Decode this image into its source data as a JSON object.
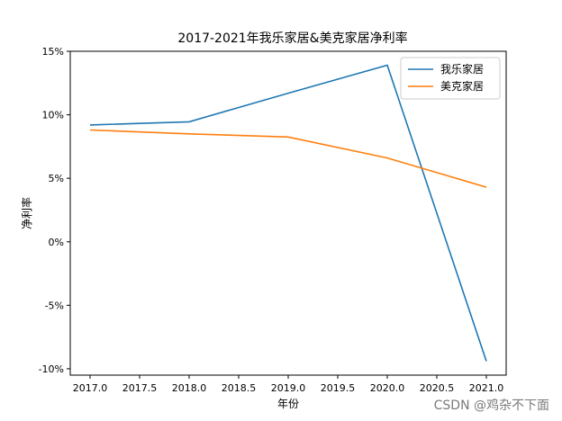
{
  "chart_data": {
    "type": "line",
    "title": "2017-2021年我乐家居&美克家居净利率",
    "xlabel": "年份",
    "ylabel": "净利率",
    "x": [
      2017,
      2018,
      2019,
      2020,
      2021
    ],
    "x_ticks": [
      "2017.0",
      "2017.5",
      "2018.0",
      "2018.5",
      "2019.0",
      "2019.5",
      "2020.0",
      "2020.5",
      "2021.0"
    ],
    "y_ticks": [
      "-10%",
      "-5%",
      "0%",
      "5%",
      "10%",
      "15%"
    ],
    "xlim": [
      2016.8,
      2021.2
    ],
    "ylim": [
      -10.5,
      15.0
    ],
    "legend_position": "top-right",
    "series": [
      {
        "name": "我乐家居",
        "color": "#1f77b4",
        "values": [
          9.2,
          9.45,
          11.7,
          13.9,
          -9.4
        ]
      },
      {
        "name": "美克家居",
        "color": "#ff7f0e",
        "values": [
          8.8,
          8.5,
          8.25,
          6.6,
          4.3
        ]
      }
    ]
  },
  "watermark": "CSDN @鸡杂不下面"
}
